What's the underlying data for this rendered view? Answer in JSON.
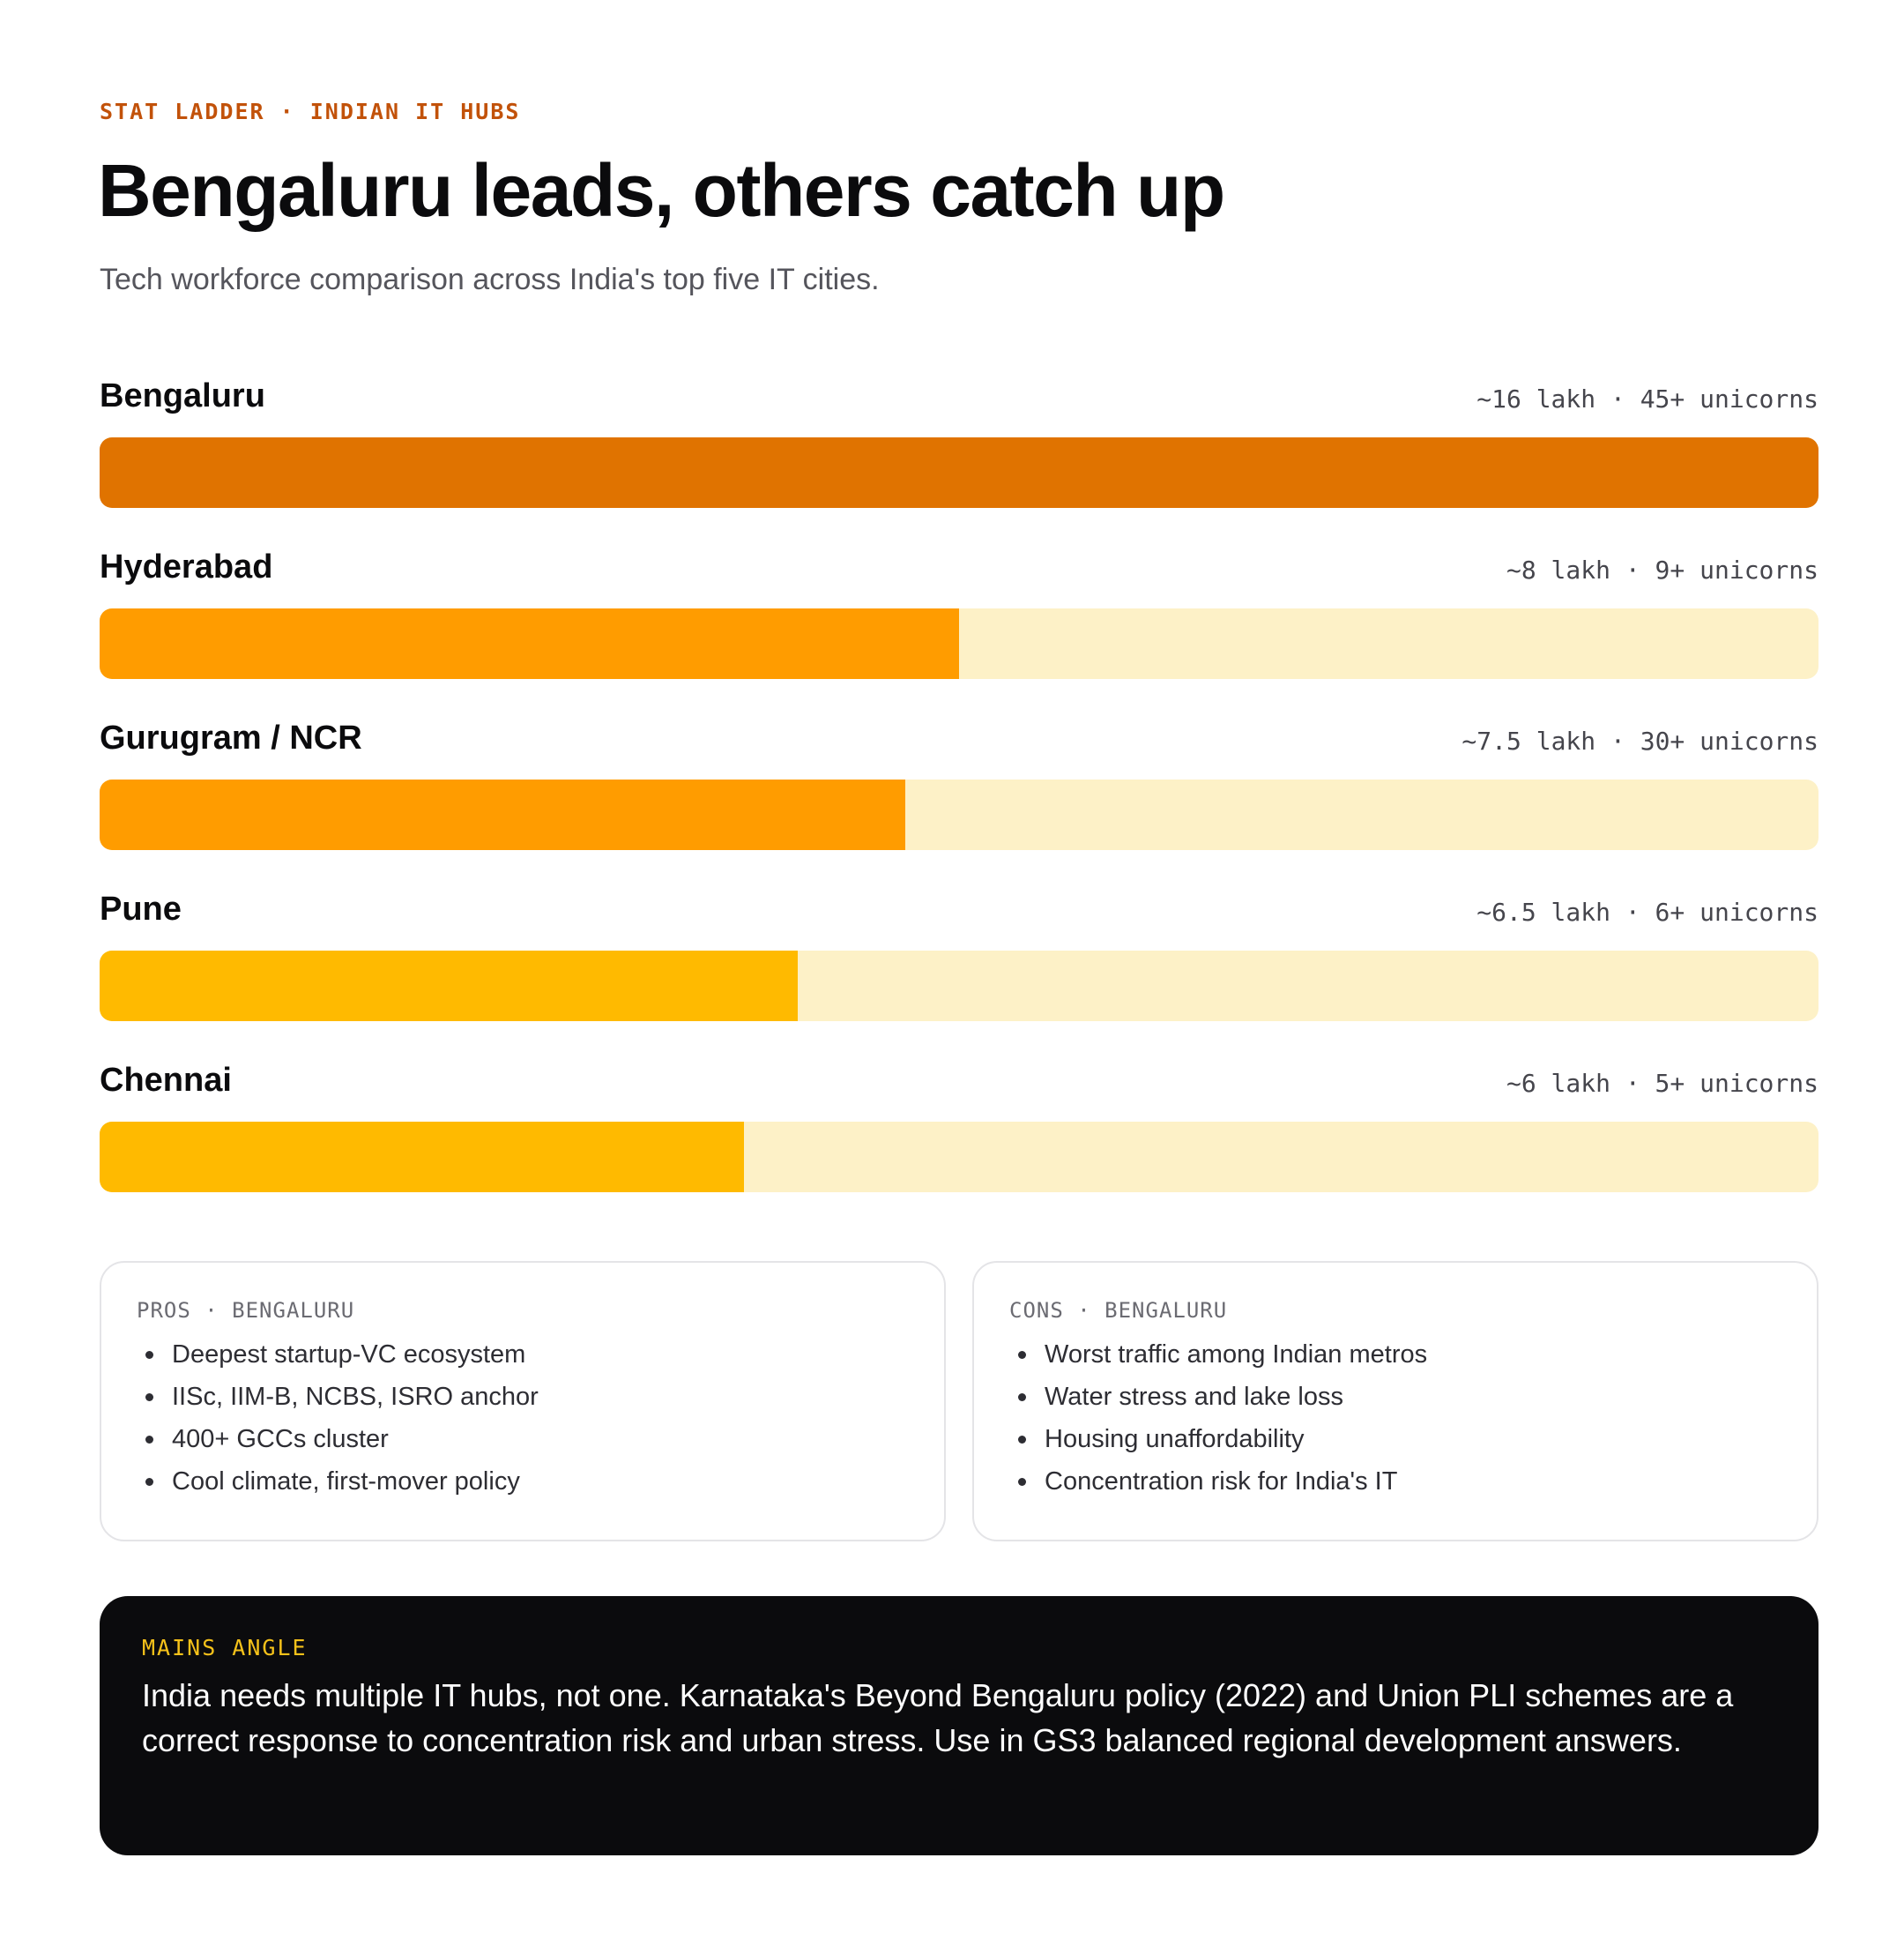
{
  "kicker": "STAT LADDER · INDIAN IT HUBS",
  "title": "Bengaluru leads, others catch up",
  "subtitle": "Tech workforce comparison across India's top five IT cities.",
  "colors": {
    "track": "#fdf1c7",
    "tier_top": "#e07300",
    "tier_mid": "#ff9c00",
    "tier_low": "#ffba00"
  },
  "chart_data": {
    "type": "bar",
    "orientation": "horizontal",
    "categories": [
      "Bengaluru",
      "Hyderabad",
      "Gurugram / NCR",
      "Pune",
      "Chennai"
    ],
    "values": [
      16,
      8,
      7.5,
      6.5,
      6
    ],
    "unit": "lakh",
    "xlim": [
      0,
      16
    ],
    "stat_labels": [
      "~16 lakh · 45+ unicorns",
      "~8 lakh · 9+ unicorns",
      "~7.5 lakh · 30+ unicorns",
      "~6.5 lakh · 6+ unicorns",
      "~6 lakh · 5+ unicorns"
    ],
    "bar_colors": [
      "#e07300",
      "#ff9c00",
      "#ff9c00",
      "#ffba00",
      "#ffba00"
    ]
  },
  "pros": {
    "label": "PROS · BENGALURU",
    "items": [
      "Deepest startup-VC ecosystem",
      "IISc, IIM-B, NCBS, ISRO anchor",
      "400+ GCCs cluster",
      "Cool climate, first-mover policy"
    ]
  },
  "cons": {
    "label": "CONS · BENGALURU",
    "items": [
      "Worst traffic among Indian metros",
      "Water stress and lake loss",
      "Housing unaffordability",
      "Concentration risk for India's IT"
    ]
  },
  "mains": {
    "label": "MAINS ANGLE",
    "text": "India needs multiple IT hubs, not one. Karnataka's Beyond Bengaluru policy (2022) and Union PLI schemes are a correct response to concentration risk and urban stress. Use in GS3 balanced regional development answers."
  }
}
